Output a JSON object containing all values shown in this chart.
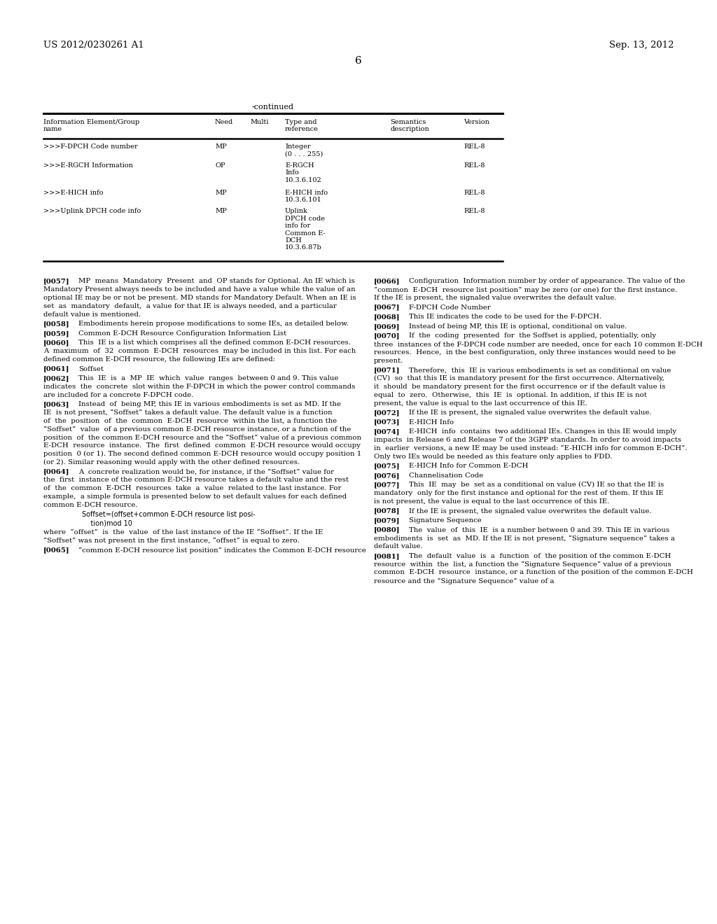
{
  "header_left": "US 2012/0230261 A1",
  "header_right": "Sep. 13, 2012",
  "page_number": "6",
  "table_title": "-continued",
  "table_headers": [
    "Information Element/Group\nname",
    "Need",
    "Multi",
    "Type and\nreference",
    "Semantics\ndescription",
    "Version"
  ],
  "table_rows": [
    [
      ">>>F-DPCH Code number",
      "MP",
      "",
      "Integer\n(0 . . . 255)",
      "",
      "REL-8"
    ],
    [
      ">>>E-RGCH Information",
      "OP",
      "",
      "E-RGCH\nInfo\n10.3.6.102",
      "",
      "REL-8"
    ],
    [
      ">>>E-HICH info",
      "MP",
      "",
      "E-HICH info\n10.3.6.101",
      "",
      "REL-8"
    ],
    [
      ">>>Uplink DPCH code info",
      "MP",
      "",
      "Uplink\nDPCH code\ninfo for\nCommon E-\nDCH\n10.3.6.87b",
      "",
      "REL-8"
    ]
  ],
  "left_paragraphs": [
    {
      "tag": "[0057]",
      "indent": true,
      "text": "MP means Mandatory Present and OP stands for Optional. An IE which is Mandatory Present always needs to be included and have a value while the value of an optional IE may be or not be present. MD stands for Mandatory Default. When an IE is set as mandatory default, a value for that IE is always needed, and a particular default value is mentioned."
    },
    {
      "tag": "[0058]",
      "indent": false,
      "text": "Embodiments herein propose modifications to some IEs, as detailed below."
    },
    {
      "tag": "[0059]",
      "indent": false,
      "text": "Common E-DCH Resource Configuration Information List"
    },
    {
      "tag": "[0060]",
      "indent": true,
      "text": "This IE is a list which comprises all the defined common E-DCH resources. A maximum of 32 common E-DCH resources may be included in this list. For each defined common E-DCH resource, the following IEs are defined:"
    },
    {
      "tag": "[0061]",
      "indent": false,
      "text": "Soffset"
    },
    {
      "tag": "[0062]",
      "indent": true,
      "text": "This IE is a MP IE which value ranges between 0 and 9. This value indicates the concrete slot within the F-DPCH in which the power control commands are included for a concrete F-DPCH code."
    },
    {
      "tag": "[0063]",
      "indent": true,
      "text": "Instead of being MP, this IE in various embodiments is set as MD. If the IE is not present, “Soffset” takes a default value. The default value is a function of the position of the common E-DCH resource within the list, a function the “Soffset” value of a previous common E-DCH resource instance, or a function of the position of the common E-DCH resource and the “Soffset” value of a previous common E-DCH resource instance. The first defined common E-DCH resource would occupy position 0 (or 1). The second defined common E-DCH resource would occupy position 1 (or 2). Similar reasoning would apply with the other defined resources."
    },
    {
      "tag": "[0064]",
      "indent": true,
      "text": "A concrete realization would be, for instance, if the “Soffset” value for the first instance of the common E-DCH resource takes a default value and the rest of the common E-DCH resources take a value related to the last instance. For example, a simple formula is presented below to set default values for each defined common E-DCH resource."
    },
    {
      "tag": "",
      "formula": true,
      "text": "Soffset=(offset+common E-DCH resource list posi-\n    tion)mod 10"
    },
    {
      "tag": "",
      "formula": false,
      "indent": false,
      "text": "where “offset” is the value of the last instance of the IE “Soffset”. If the IE “Soffset” was not present in the first instance, “offset” is equal to zero."
    },
    {
      "tag": "[0065]",
      "indent": false,
      "text": "“common E-DCH resource list position” indicates the Common E-DCH resource"
    }
  ],
  "right_paragraphs": [
    {
      "tag": "[0066]",
      "indent": true,
      "text": "Configuration Information number by order of appearance. The value of the “common E-DCH resource list position” may be zero (or one) for the first instance. If the IE is present, the signaled value overwrites the default value."
    },
    {
      "tag": "[0067]",
      "indent": false,
      "text": "F-DPCH Code Number"
    },
    {
      "tag": "[0068]",
      "indent": true,
      "text": "This IE indicates the code to be used for the F-DPCH."
    },
    {
      "tag": "[0069]",
      "indent": true,
      "text": "Instead of being MP, this IE is optional, conditional on value."
    },
    {
      "tag": "[0070]",
      "indent": true,
      "text": "If the coding presented for the Soffset is applied, potentially, only three instances of the F-DPCH code number are needed, once for each 10 common E-DCH resources. Hence, in the best configuration, only three instances would need to be present."
    },
    {
      "tag": "[0071]",
      "indent": true,
      "text": "Therefore, this IE is various embodiments is set as conditional on value (CV) so that this IE is mandatory present for the first occurrence. Alternatively, it should be mandatory present for the first occurrence or if the default value is equal to zero. Otherwise, this IE is optional. In addition, if this IE is not present, the value is equal to the last occurrence of this IE."
    },
    {
      "tag": "[0072]",
      "indent": true,
      "text": "If the IE is present, the signaled value overwrites the default value."
    },
    {
      "tag": "[0073]",
      "indent": false,
      "text": "E-HICH Info"
    },
    {
      "tag": "[0074]",
      "indent": true,
      "text": "E-HICH info contains two additional IEs. Changes in this IE would imply impacts in Release 6 and Release 7 of the 3GPP standards. In order to avoid impacts in earlier versions, a new IE may be used instead: “E-HICH info for common E-DCH”. Only two IEs would be needed as this feature only applies to FDD."
    },
    {
      "tag": "[0075]",
      "indent": false,
      "text": "E-HICH Info for Common E-DCH"
    },
    {
      "tag": "[0076]",
      "indent": false,
      "text": "Channelisation Code"
    },
    {
      "tag": "[0077]",
      "indent": true,
      "text": "This IE may be set as a conditional on value (CV) IE so that the IE is mandatory only for the first instance and optional for the rest of them. If this IE is not present, the value is equal to the last occurrence of this IE."
    },
    {
      "tag": "[0078]",
      "indent": true,
      "text": "If the IE is present, the signaled value overwrites the default value."
    },
    {
      "tag": "[0079]",
      "indent": false,
      "text": "Signature Sequence"
    },
    {
      "tag": "[0080]",
      "indent": true,
      "text": "The value of this IE is a number between 0 and 39. This IE in various embodiments is set as MD. If the IE is not present, “Signature sequence” takes a default value."
    },
    {
      "tag": "[0081]",
      "indent": true,
      "text": "The default value is a function of the position of the common E-DCH resource within the list, a function the “Signature Sequence” value of a previous common E-DCH resource instance, or a function of the position of the common E-DCH resource and the “Signature Sequence” value of a"
    }
  ],
  "bg_color": "#ffffff"
}
